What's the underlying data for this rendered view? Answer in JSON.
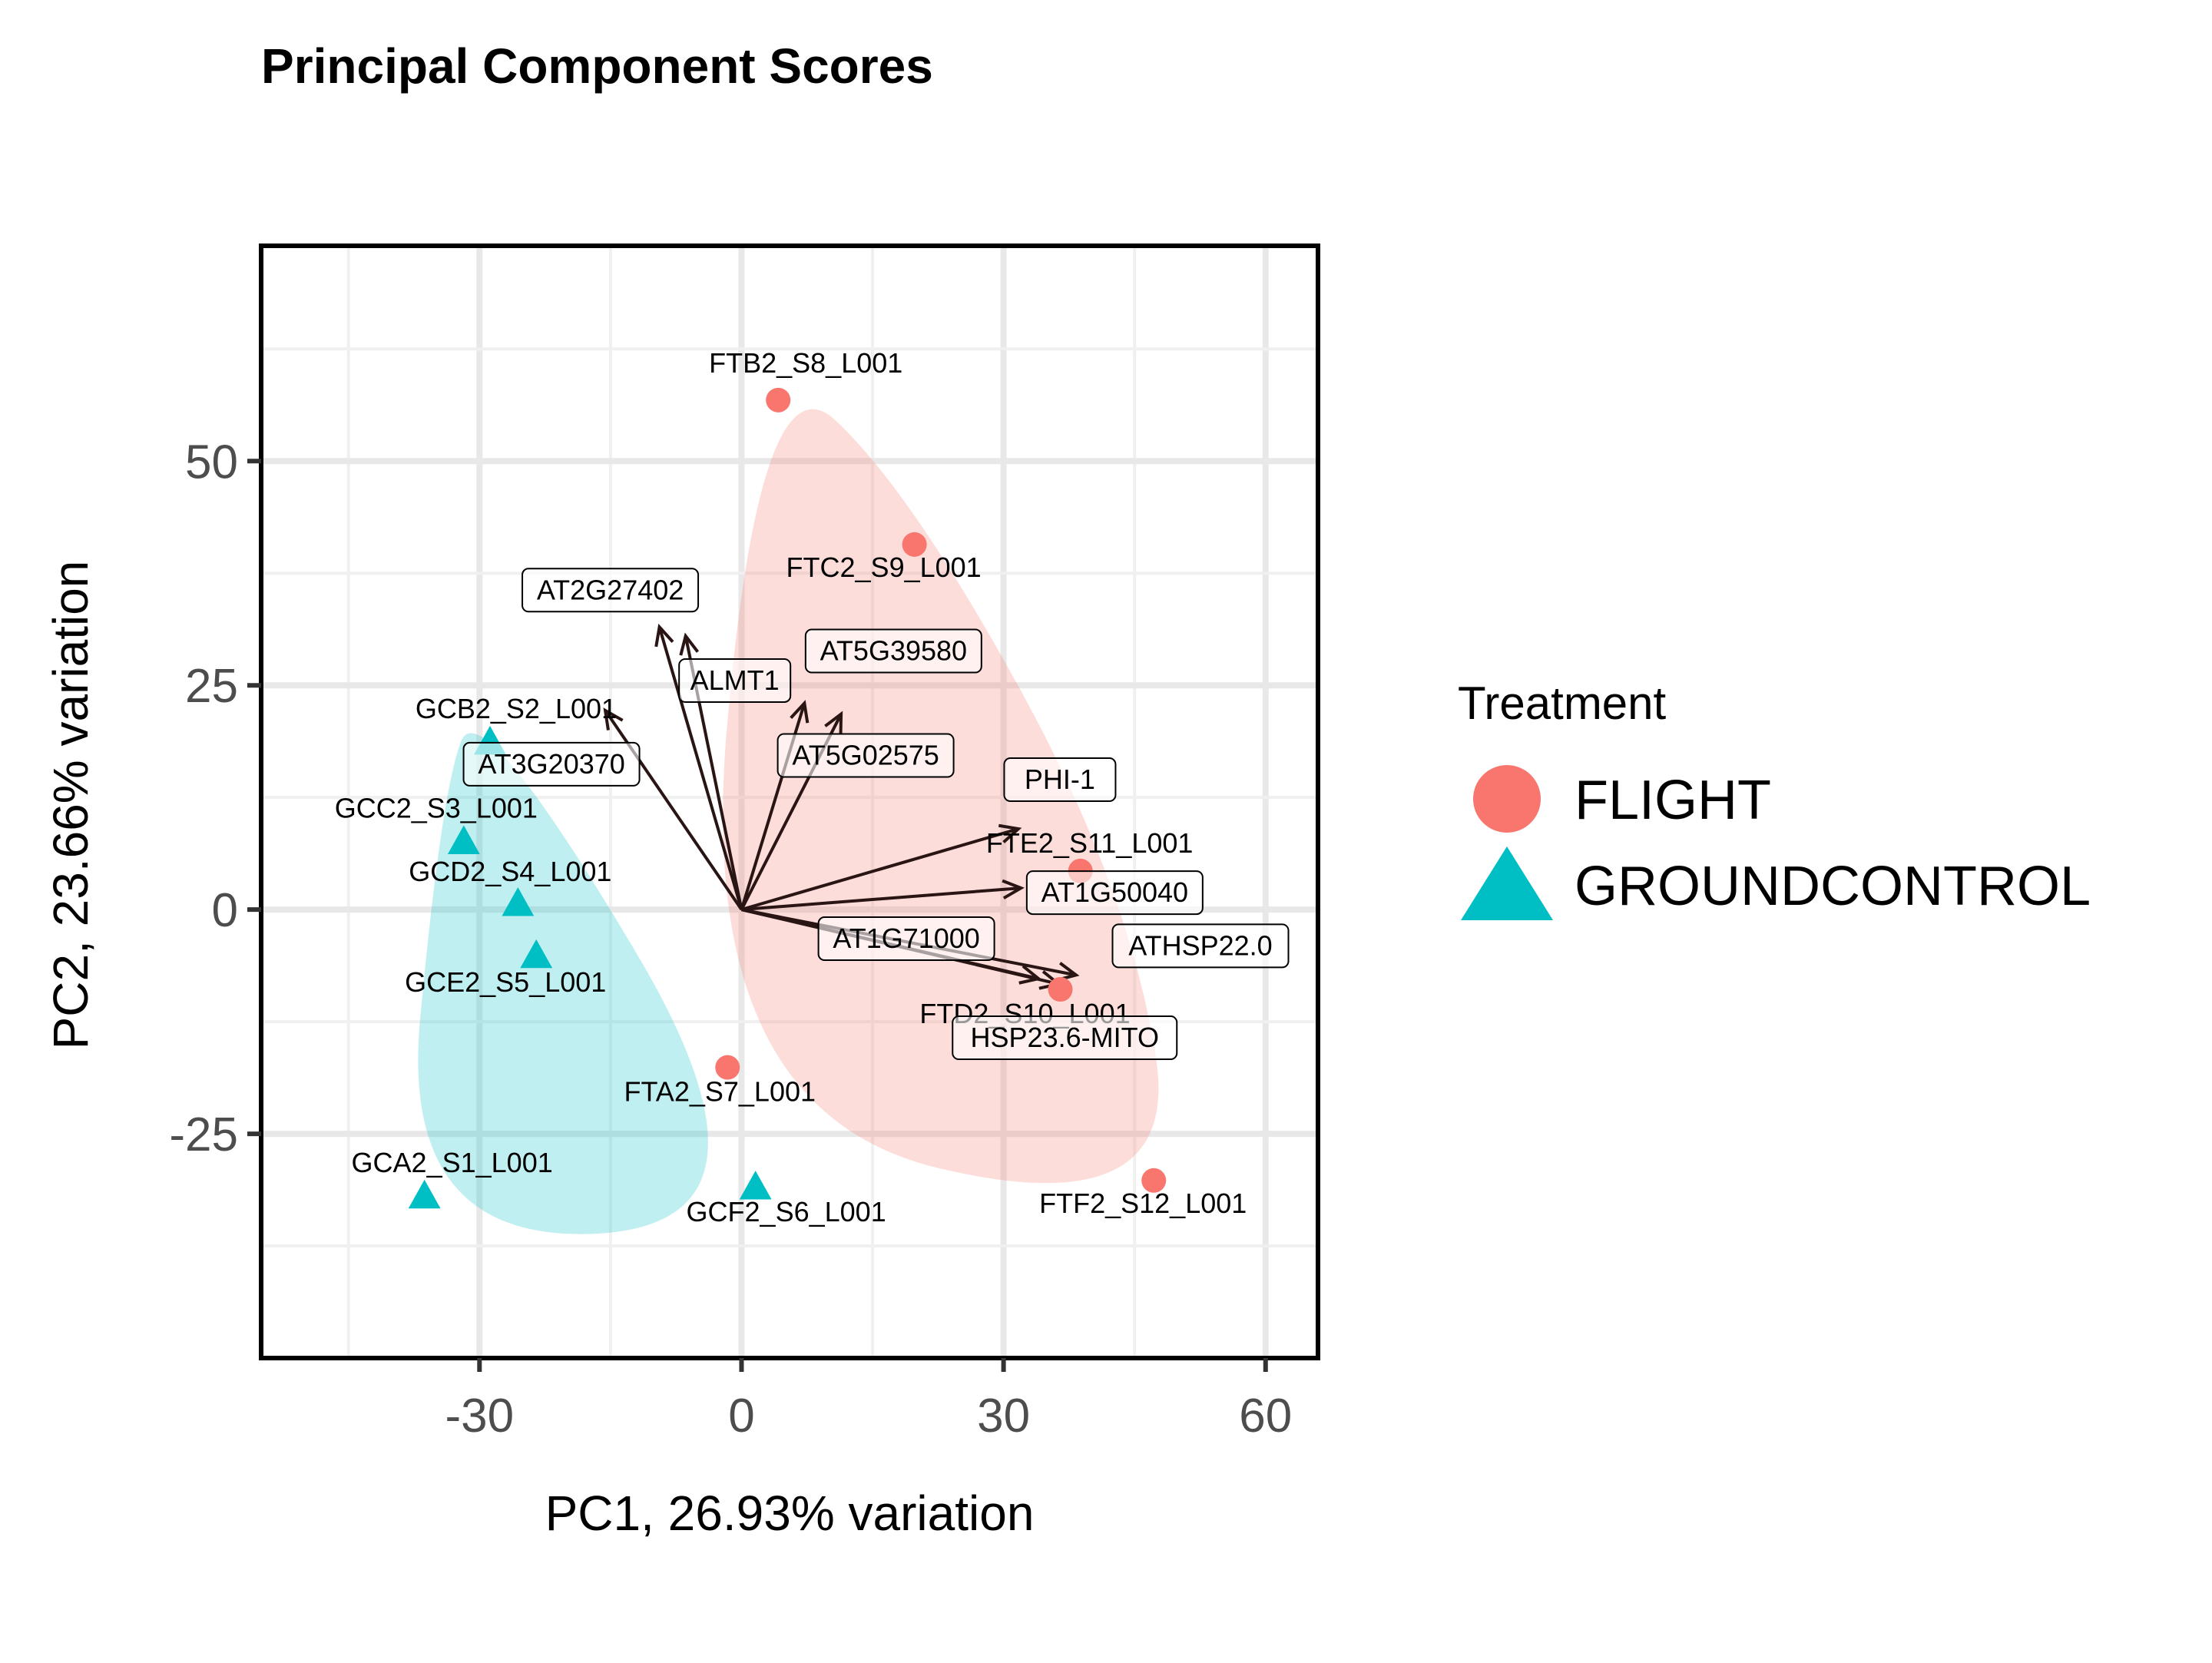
{
  "chart_data": {
    "type": "scatter",
    "title": "Principal Component Scores",
    "xlabel": "PC1, 26.93% variation",
    "ylabel": "PC2, 23.66% variation",
    "xlim": [
      -55,
      66
    ],
    "ylim": [
      -50,
      74
    ],
    "x_ticks": [
      -30,
      0,
      30,
      60
    ],
    "x_tick_labels": [
      "-30",
      "0",
      "30",
      "60"
    ],
    "y_ticks": [
      -25,
      0,
      25,
      50
    ],
    "y_tick_labels": [
      "-25",
      "0",
      "25",
      "50"
    ],
    "grid": true,
    "legend": {
      "title": "Treatment",
      "position": "right",
      "entries": [
        {
          "label": "FLIGHT",
          "shape": "circle",
          "color": "#F8766D"
        },
        {
          "label": "GROUNDCONTROL",
          "shape": "triangle",
          "color": "#00BFC4"
        }
      ]
    },
    "series": [
      {
        "name": "FLIGHT",
        "shape": "circle",
        "color": "#F8766D",
        "points": [
          {
            "label": "FTB2_S8_L001",
            "x": 4.2,
            "y": 56.8
          },
          {
            "label": "FTC2_S9_L001",
            "x": 19.8,
            "y": 40.7
          },
          {
            "label": "FTE2_S11_L001",
            "x": 38.8,
            "y": 4.3
          },
          {
            "label": "FTD2_S10_L001",
            "x": 36.5,
            "y": -8.9
          },
          {
            "label": "FTA2_S7_L001",
            "x": -1.6,
            "y": -17.6
          },
          {
            "label": "FTF2_S12_L001",
            "x": 47.2,
            "y": -30.2
          }
        ]
      },
      {
        "name": "GROUNDCONTROL",
        "shape": "triangle",
        "color": "#00BFC4",
        "points": [
          {
            "label": "GCB2_S2_L001",
            "x": -28.8,
            "y": 18.6
          },
          {
            "label": "GCC2_S3_L001",
            "x": -31.8,
            "y": 7.5
          },
          {
            "label": "GCD2_S4_L001",
            "x": -25.6,
            "y": 0.6
          },
          {
            "label": "GCE2_S5_L001",
            "x": -23.5,
            "y": -5.2
          },
          {
            "label": "GCA2_S1_L001",
            "x": -36.3,
            "y": -32.0
          },
          {
            "label": "GCF2_S6_L001",
            "x": 1.6,
            "y": -31.0
          }
        ]
      }
    ],
    "loadings": [
      {
        "label": "AT2G27402",
        "x": -9.4,
        "y": 31.5
      },
      {
        "label": "ALMT1",
        "x": -6.4,
        "y": 30.5
      },
      {
        "label": "AT5G39580",
        "x": 7.2,
        "y": 23.0
      },
      {
        "label": "AT3G20370",
        "x": -15.6,
        "y": 22.2
      },
      {
        "label": "AT5G02575",
        "x": 11.4,
        "y": 21.8
      },
      {
        "label": "PHI-1",
        "x": 31.7,
        "y": 9.0
      },
      {
        "label": "AT1G50040",
        "x": 32.0,
        "y": 2.4
      },
      {
        "label": "AT1G71000",
        "x": 34.0,
        "y": -7.7
      },
      {
        "label": "HSP23.6-MITO",
        "x": 36.3,
        "y": -8.3
      },
      {
        "label": "ATHSP22.0",
        "x": 38.3,
        "y": -7.3
      }
    ]
  }
}
